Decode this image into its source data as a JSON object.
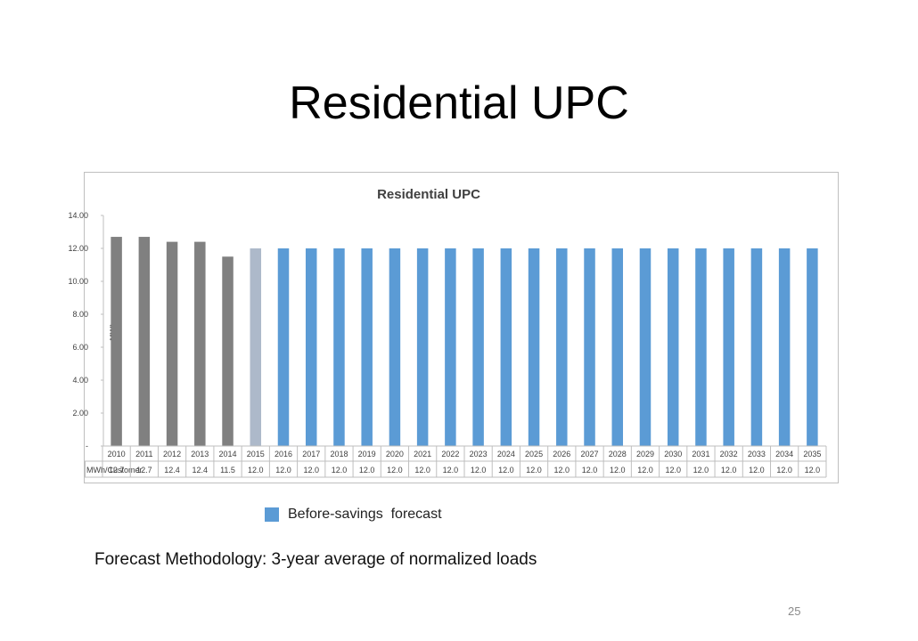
{
  "slide": {
    "title": "Residential UPC",
    "methodology": "Forecast Methodology: 3-year average of normalized loads",
    "page_number": "25",
    "legend_label": "Before-savings  forecast"
  },
  "colors": {
    "actual": "#808080",
    "base_year": "#adb9ca",
    "forecast": "#5b9bd5"
  },
  "chart_data": {
    "type": "bar",
    "title": "Residential UPC",
    "ylabel": "MWh",
    "ylim": [
      0,
      14
    ],
    "yticks": [
      "-",
      "2.00",
      "4.00",
      "6.00",
      "8.00",
      "10.00",
      "12.00",
      "14.00"
    ],
    "grid": false,
    "table_row_label": "MWh/Customer",
    "categories": [
      "2010",
      "2011",
      "2012",
      "2013",
      "2014",
      "2015",
      "2016",
      "2017",
      "2018",
      "2019",
      "2020",
      "2021",
      "2022",
      "2023",
      "2024",
      "2025",
      "2026",
      "2027",
      "2028",
      "2029",
      "2030",
      "2031",
      "2032",
      "2033",
      "2034",
      "2035"
    ],
    "values": [
      12.7,
      12.7,
      12.4,
      12.4,
      11.5,
      12.0,
      12.0,
      12.0,
      12.0,
      12.0,
      12.0,
      12.0,
      12.0,
      12.0,
      12.0,
      12.0,
      12.0,
      12.0,
      12.0,
      12.0,
      12.0,
      12.0,
      12.0,
      12.0,
      12.0,
      12.0
    ],
    "value_labels": [
      "12.7",
      "12.7",
      "12.4",
      "12.4",
      "11.5",
      "12.0",
      "12.0",
      "12.0",
      "12.0",
      "12.0",
      "12.0",
      "12.0",
      "12.0",
      "12.0",
      "12.0",
      "12.0",
      "12.0",
      "12.0",
      "12.0",
      "12.0",
      "12.0",
      "12.0",
      "12.0",
      "12.0",
      "12.0",
      "12.0"
    ],
    "bar_groups": [
      "actual",
      "actual",
      "actual",
      "actual",
      "actual",
      "base_year",
      "forecast",
      "forecast",
      "forecast",
      "forecast",
      "forecast",
      "forecast",
      "forecast",
      "forecast",
      "forecast",
      "forecast",
      "forecast",
      "forecast",
      "forecast",
      "forecast",
      "forecast",
      "forecast",
      "forecast",
      "forecast",
      "forecast",
      "forecast"
    ]
  }
}
